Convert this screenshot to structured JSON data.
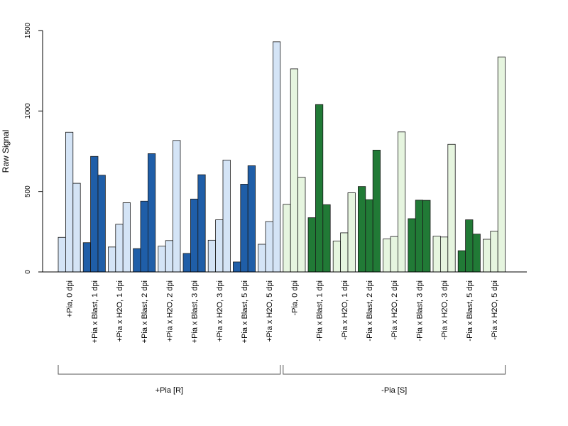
{
  "chart_data": {
    "type": "bar",
    "ylabel": "Raw Signal",
    "ylim": [
      0,
      1500
    ],
    "yticks": [
      0,
      500,
      1000,
      1500
    ],
    "grid": false,
    "categories": [
      "+Pia, 0 dpi",
      "+Pia x Blast, 1 dpi",
      "+Pia x H2O, 1 dpi",
      "+Pia x Blast, 2 dpi",
      "+Pia x H2O, 2 dpi",
      "+Pia x Blast, 3 dpi",
      "+Pia x H2O, 3 dpi",
      "+Pia x Blast, 5 dpi",
      "+Pia x H2O, 5 dpi",
      "-Pia, 0 dpi",
      "-Pia x Blast, 1 dpi",
      "-Pia x H2O, 1 dpi",
      "-Pia x Blast, 2 dpi",
      "-Pia x H2O, 2 dpi",
      "-Pia x Blast, 3 dpi",
      "-Pia x H2O, 3 dpi",
      "-Pia x Blast, 5 dpi",
      "-Pia x H2O, 5 dpi"
    ],
    "values": [
      [
        215,
        868,
        551
      ],
      [
        182,
        718,
        601
      ],
      [
        155,
        296,
        430
      ],
      [
        145,
        440,
        735
      ],
      [
        160,
        195,
        817
      ],
      [
        115,
        453,
        604
      ],
      [
        197,
        324,
        695
      ],
      [
        62,
        545,
        660
      ],
      [
        172,
        313,
        1430
      ],
      [
        420,
        1262,
        588
      ],
      [
        337,
        1040,
        418
      ],
      [
        192,
        243,
        492
      ],
      [
        531,
        449,
        757
      ],
      [
        205,
        220,
        870
      ],
      [
        331,
        446,
        445
      ],
      [
        222,
        217,
        793
      ],
      [
        132,
        324,
        235
      ],
      [
        203,
        253,
        1336
      ]
    ],
    "bar_colors": [
      "#d4e4f6",
      "#1f5ea8",
      "#d4e4f6",
      "#1f5ea8",
      "#d4e4f6",
      "#1f5ea8",
      "#d4e4f6",
      "#1f5ea8",
      "#d4e4f6",
      "#e6f5df",
      "#217a36",
      "#e6f5df",
      "#217a36",
      "#e6f5df",
      "#217a36",
      "#e6f5df",
      "#217a36",
      "#e6f5df"
    ],
    "groups": [
      {
        "label": "+Pia [R]",
        "from": 0,
        "to": 8
      },
      {
        "label": "-Pia [S]",
        "from": 9,
        "to": 17
      }
    ]
  }
}
